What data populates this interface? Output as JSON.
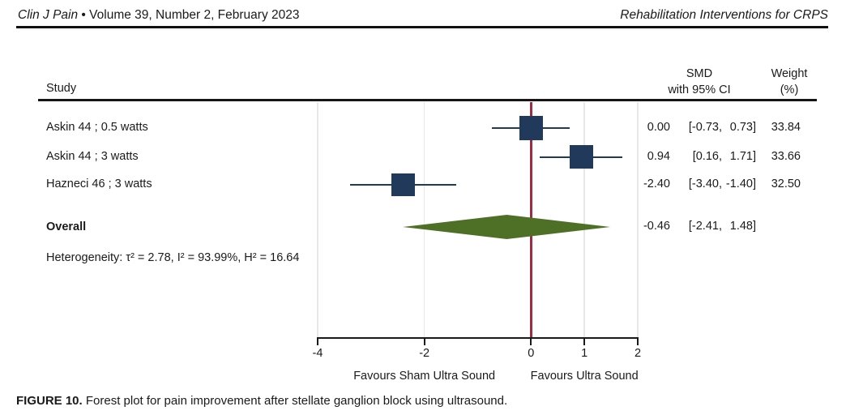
{
  "page_header": {
    "journal": "Clin J Pain",
    "separator": "•",
    "issue": "Volume 39, Number 2, February 2023",
    "running_title": "Rehabilitation Interventions for CRPS"
  },
  "table": {
    "study_col_header": "Study",
    "smd_header_line1": "SMD",
    "smd_header_line2": "with 95% CI",
    "weight_header_line1": "Weight",
    "weight_header_line2": "(%)"
  },
  "chart_data": {
    "type": "forest",
    "title": "Forest plot for pain improvement after stellate ganglion block using ultrasound",
    "studies": [
      {
        "label": "Askin 44 ; 0.5 watts",
        "smd": 0.0,
        "ci": [
          -0.73,
          0.73
        ],
        "weight": 33.84
      },
      {
        "label": "Askin 44 ; 3 watts",
        "smd": 0.94,
        "ci": [
          0.16,
          1.71
        ],
        "weight": 33.66
      },
      {
        "label": "Hazneci 46 ; 3 watts",
        "smd": -2.4,
        "ci": [
          -3.4,
          -1.4
        ],
        "weight": 32.5
      }
    ],
    "overall": {
      "label": "Overall",
      "smd": -0.46,
      "ci": [
        -2.41,
        1.48
      ]
    },
    "heterogeneity": "Heterogeneity: τ² = 2.78, I² = 93.99%, H² = 16.64",
    "xlim": [
      -4,
      2
    ],
    "x_ticks": [
      -4,
      -2,
      0,
      1,
      2
    ],
    "zero_line": 0,
    "x_label_left": "Favours Sham Ultra Sound",
    "x_label_right": "Favours Ultra Sound",
    "grid": true,
    "legend": "none",
    "colors": {
      "marker": "#21395b",
      "ci_line": "#21395b",
      "diamond": "#4e7026",
      "zero_line": "#a12c42",
      "gridline": "#e7e7e7",
      "axis": "#1a1a1a"
    }
  },
  "caption": {
    "tag": "FIGURE 10.",
    "text": " Forest plot for pain improvement after stellate ganglion block using ultrasound."
  }
}
